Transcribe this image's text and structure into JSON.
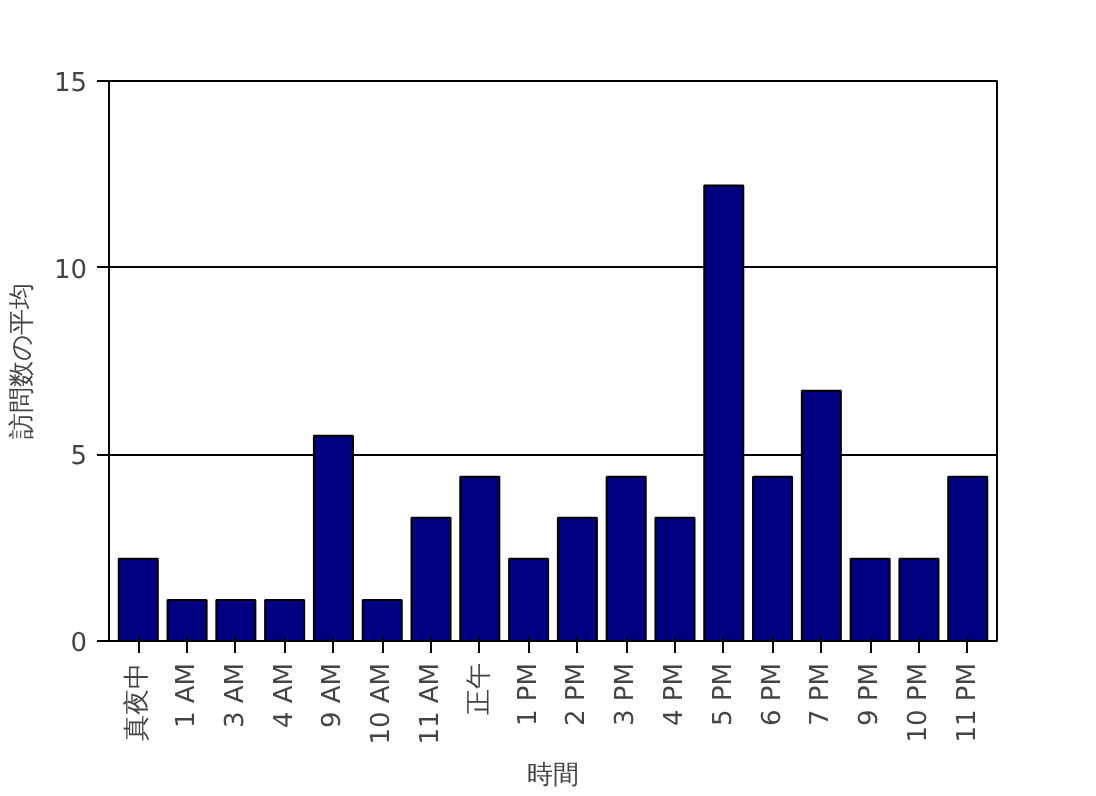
{
  "chart_data": {
    "type": "bar",
    "categories": [
      "真夜中",
      "1 AM",
      "3 AM",
      "4 AM",
      "9 AM",
      "10 AM",
      "11 AM",
      "正午",
      "1 PM",
      "2 PM",
      "3 PM",
      "4 PM",
      "5 PM",
      "6 PM",
      "7 PM",
      "9 PM",
      "10 PM",
      "11 PM"
    ],
    "values": [
      2.2,
      1.1,
      1.1,
      1.1,
      5.5,
      1.1,
      3.3,
      4.4,
      2.2,
      3.3,
      4.4,
      3.3,
      12.2,
      4.4,
      6.7,
      2.2,
      2.2,
      4.4
    ],
    "color": "#000080",
    "xlabel": "時間",
    "ylabel": "訪問数の平均",
    "ylim": [
      0,
      15
    ],
    "yticks": [
      0,
      5,
      10,
      15
    ],
    "grid": "y"
  }
}
